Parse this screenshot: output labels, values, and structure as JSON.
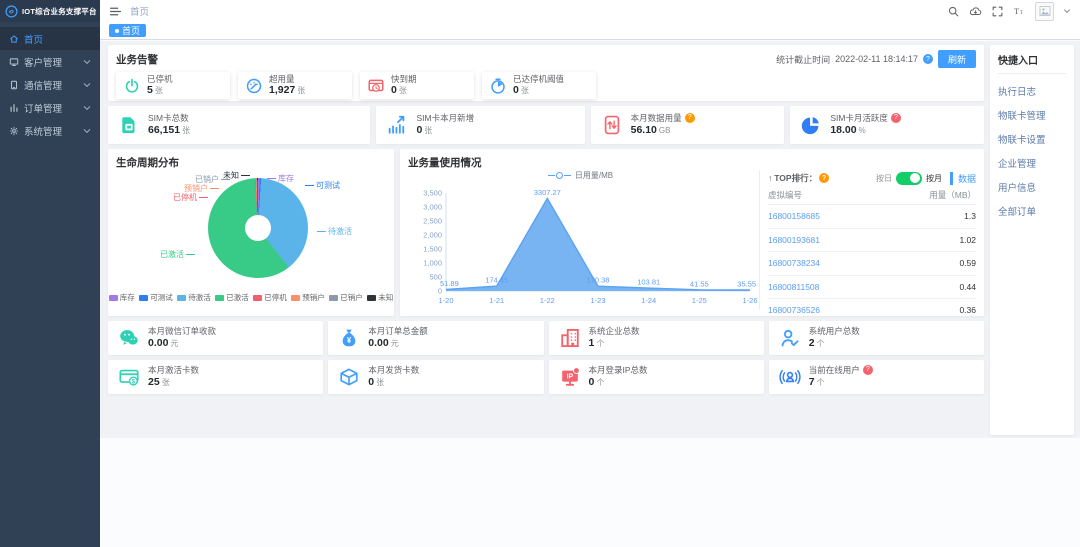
{
  "app": {
    "title": "IOT综合业务支撑平台"
  },
  "topbar": {
    "breadcrumb": "首页"
  },
  "tabs": [
    {
      "label": "首页",
      "active": true
    }
  ],
  "sidebar": {
    "items": [
      {
        "label": "首页",
        "icon": "home-icon",
        "active": true,
        "expandable": false
      },
      {
        "label": "客户管理",
        "icon": "customer-icon",
        "active": false,
        "expandable": true
      },
      {
        "label": "通信管理",
        "icon": "comm-icon",
        "active": false,
        "expandable": true
      },
      {
        "label": "订单管理",
        "icon": "order-icon",
        "active": false,
        "expandable": true
      },
      {
        "label": "系统管理",
        "icon": "system-icon",
        "active": false,
        "expandable": true
      }
    ]
  },
  "ui": {
    "help_glyph": "?"
  },
  "alerts": {
    "title": "业务告警",
    "stat_time_label": "统计截止时间",
    "stat_time": "2022-02-11 18:14:17",
    "help_color": "#409eff",
    "refresh_label": "刷新",
    "cards": [
      {
        "label": "已停机",
        "value": "5",
        "unit": "张",
        "icon": "power-icon",
        "color": "#2fd0b4"
      },
      {
        "label": "超用量",
        "value": "1,927",
        "unit": "张",
        "icon": "gauge-icon",
        "color": "#409eff"
      },
      {
        "label": "快到期",
        "value": "0",
        "unit": "张",
        "icon": "expire-icon",
        "color": "#f5626b"
      },
      {
        "label": "已达停机阈值",
        "value": "0",
        "unit": "张",
        "icon": "threshold-icon",
        "color": "#409eff"
      }
    ]
  },
  "kpis": [
    {
      "label": "SIM卡总数",
      "value": "66,151",
      "unit": "张",
      "icon": "sim-icon",
      "color": "#2fd0b4"
    },
    {
      "label": "SIM卡本月新增",
      "value": "0",
      "unit": "张",
      "icon": "trend-icon",
      "color": "#409eff"
    },
    {
      "label": "本月数据用量",
      "value": "56.10",
      "unit": "GB",
      "icon": "data-icon",
      "color": "#f5626b",
      "help": true,
      "help_color": "#ff9900"
    },
    {
      "label": "SIM卡月活跃度",
      "value": "18.00",
      "unit": "%",
      "icon": "pie-icon",
      "color": "#2f7ef7",
      "help": true,
      "help_color": "#f5626b"
    }
  ],
  "chart_data": [
    {
      "type": "pie",
      "title": "生命周期分布",
      "labels": [
        "库存",
        "可测试",
        "待激活",
        "已激活",
        "已停机",
        "预销户",
        "已销户",
        "未知"
      ],
      "values": [
        0.5,
        0.5,
        38.5,
        59.5,
        0.25,
        0.25,
        0.25,
        0.25
      ],
      "colors": [
        "#a178e8",
        "#2d7cf0",
        "#5ab4ea",
        "#38ca87",
        "#f2606d",
        "#fa9168",
        "#8b98ad",
        "#2e3338"
      ],
      "legend_position": "bottom",
      "note": "values are percent estimates read from the donut"
    },
    {
      "type": "area",
      "title": "业务量使用情况",
      "x": [
        "1-20",
        "1-21",
        "1-22",
        "1-23",
        "1-24",
        "1-25",
        "1-26"
      ],
      "series": [
        {
          "name": "日用量/MB",
          "values": [
            51.89,
            174.45,
            3307.27,
            170.38,
            103.81,
            41.55,
            35.55
          ]
        }
      ],
      "point_labels": [
        "51.89",
        "174.45",
        "3307.27",
        "170.38",
        "103.81",
        "41.55",
        "35.55"
      ],
      "ylim": [
        0,
        3500
      ],
      "yticks": [
        0,
        500,
        1000,
        1500,
        2000,
        2500,
        3000,
        3500
      ],
      "fill_color": "#78b4f1",
      "line_color": "#5ca2f3",
      "grid": false,
      "legend_position": "top"
    }
  ],
  "top_rank": {
    "title_prefix": "↑",
    "title": "TOP排行：",
    "help_color": "#ff9900",
    "toggle": {
      "left": "按日",
      "right": "按月",
      "active": "按月",
      "on_color": "#13ce66"
    },
    "data_label": "数据",
    "columns": [
      "虚拟编号",
      "用量（MB）"
    ],
    "rows": [
      [
        "16800158685",
        "1.3"
      ],
      [
        "16800193681",
        "1.02"
      ],
      [
        "16800738234",
        "0.59"
      ],
      [
        "16800811508",
        "0.44"
      ],
      [
        "16800736526",
        "0.36"
      ]
    ]
  },
  "bottom_stats": [
    {
      "label": "本月微信订单收款",
      "value": "0.00",
      "unit": "元",
      "icon": "wechat-icon",
      "color": "#2fd0b4"
    },
    {
      "label": "本月订单总金额",
      "value": "0.00",
      "unit": "元",
      "icon": "moneybag-icon",
      "color": "#409eff"
    },
    {
      "label": "系统企业总数",
      "value": "1",
      "unit": "个",
      "icon": "building-icon",
      "color": "#f5626b"
    },
    {
      "label": "系统用户总数",
      "value": "2",
      "unit": "个",
      "icon": "user-icon",
      "color": "#409eff"
    },
    {
      "label": "本月激活卡数",
      "value": "25",
      "unit": "张",
      "icon": "card-icon",
      "color": "#2fd0b4"
    },
    {
      "label": "本月发货卡数",
      "value": "0",
      "unit": "张",
      "icon": "package-icon",
      "color": "#409eff"
    },
    {
      "label": "本月登录IP总数",
      "value": "0",
      "unit": "个",
      "icon": "ip-icon",
      "color": "#f5626b"
    },
    {
      "label": "当前在线用户",
      "value": "7",
      "unit": "个",
      "icon": "online-icon",
      "color": "#2f7ef7",
      "help": true,
      "help_color": "#f5626b"
    }
  ],
  "quick_links": {
    "title": "快捷入口",
    "links": [
      "执行日志",
      "物联卡管理",
      "物联卡设置",
      "企业管理",
      "用户信息",
      "全部订单"
    ]
  }
}
